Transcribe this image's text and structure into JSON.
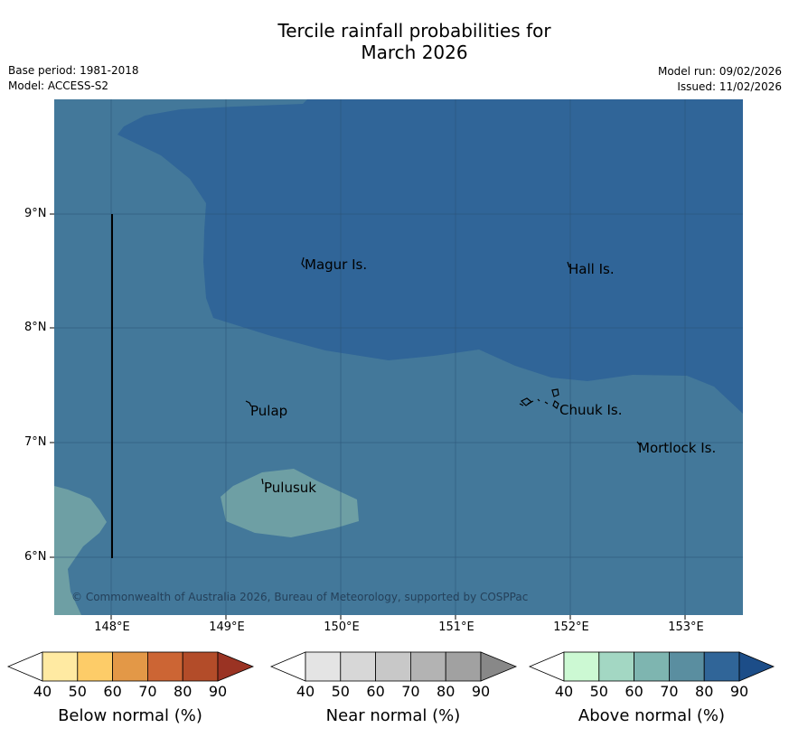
{
  "title": {
    "line1": "Tercile rainfall probabilities for",
    "line2": "March 2026"
  },
  "info": {
    "base_period": "Base period: 1981-2018",
    "model": "Model: ACCESS-S2",
    "model_run": "Model run: 09/02/2026",
    "issued": "Issued: 11/02/2026"
  },
  "map": {
    "lat_labels": [
      "9°N",
      "8°N",
      "7°N",
      "6°N"
    ],
    "lon_labels": [
      "148°E",
      "149°E",
      "150°E",
      "151°E",
      "152°E",
      "153°E"
    ],
    "places": [
      "Magur Is.",
      "Hall Is.",
      "Pulap",
      "Chuuk Is.",
      "Mortlock Is.",
      "Pulusuk"
    ],
    "copyright": "© Commonwealth of Australia 2026, Bureau of Meteorology, supported by COSPPac",
    "region_colors": {
      "above_70_80": "#43789a",
      "above_80_90": "#306598",
      "above_60_70": "#6e9fa4"
    }
  },
  "colorbars": [
    {
      "title": "Below normal (%)",
      "ticks": [
        "40",
        "50",
        "60",
        "70",
        "80",
        "90"
      ],
      "colors": [
        "#ffffff",
        "#ffeaa2",
        "#fdcc68",
        "#e39847",
        "#cc6534",
        "#b34c29",
        "#9a3323"
      ]
    },
    {
      "title": "Near normal (%)",
      "ticks": [
        "40",
        "50",
        "60",
        "70",
        "80",
        "90"
      ],
      "colors": [
        "#ffffff",
        "#e4e4e4",
        "#d7d7d7",
        "#c8c8c8",
        "#b3b3b3",
        "#a1a1a1",
        "#888888"
      ]
    },
    {
      "title": "Above normal (%)",
      "ticks": [
        "40",
        "50",
        "60",
        "70",
        "80",
        "90"
      ],
      "colors": [
        "#ffffff",
        "#ccf9d3",
        "#a3d7c3",
        "#7eb5b0",
        "#5a8ea0",
        "#306598",
        "#1c4d88"
      ]
    }
  ]
}
